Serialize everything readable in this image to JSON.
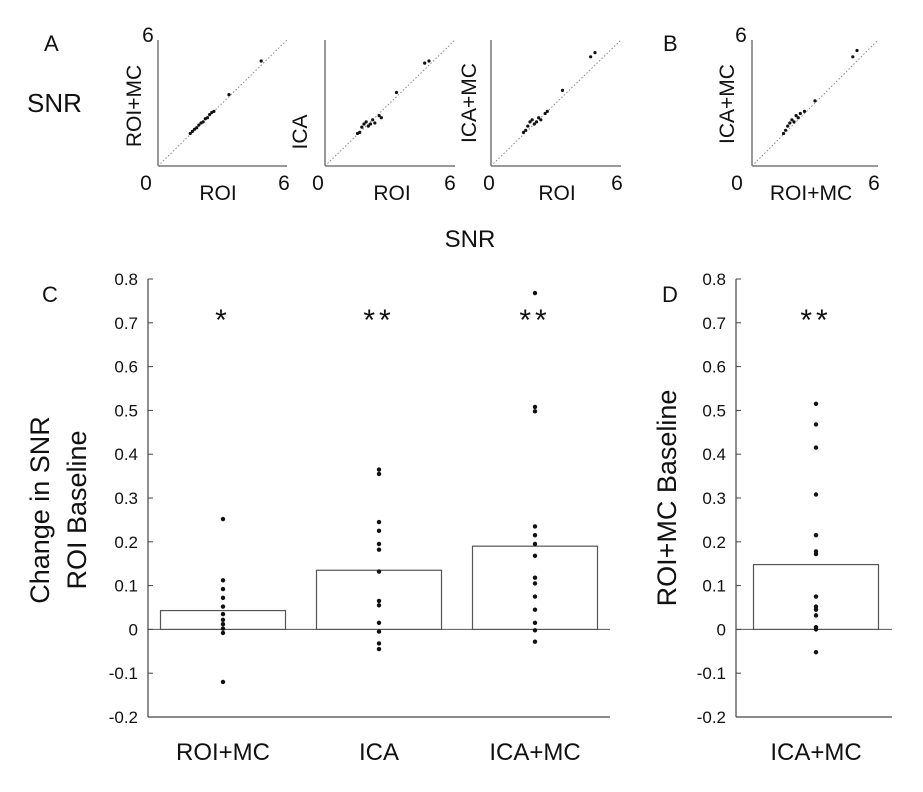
{
  "figure": {
    "snr_side_label": "SNR",
    "snr_center_label": "SNR"
  },
  "chart_data": [
    {
      "type": "scatter",
      "panel_label": "A",
      "xlabel": "ROI",
      "ylabel": "ROI+MC",
      "xlim": [
        0,
        6
      ],
      "ylim": [
        0,
        6
      ],
      "tick_min_label": "0",
      "tick_max_label": "6",
      "x": [
        1.5,
        1.6,
        1.7,
        1.8,
        1.9,
        2.0,
        2.1,
        2.2,
        2.3,
        2.4,
        2.5,
        2.6,
        3.3,
        4.8
      ],
      "y": [
        1.55,
        1.65,
        1.75,
        1.82,
        1.95,
        2.05,
        2.1,
        2.25,
        2.3,
        2.45,
        2.55,
        2.6,
        3.4,
        5.0
      ]
    },
    {
      "type": "scatter",
      "panel_label": "",
      "xlabel": "ROI",
      "ylabel": "ICA",
      "xlim": [
        0,
        6
      ],
      "ylim": [
        0,
        6
      ],
      "tick_min_label": "0",
      "tick_max_label": "6",
      "x": [
        1.5,
        1.6,
        1.7,
        1.8,
        1.9,
        2.0,
        2.1,
        2.2,
        2.3,
        2.5,
        2.6,
        3.3,
        4.6,
        4.8
      ],
      "y": [
        1.55,
        1.6,
        1.85,
        2.0,
        2.1,
        1.9,
        2.0,
        2.2,
        2.05,
        2.4,
        2.3,
        3.5,
        4.9,
        5.0
      ]
    },
    {
      "type": "scatter",
      "panel_label": "",
      "xlabel": "ROI",
      "ylabel": "ICA+MC",
      "xlim": [
        0,
        6
      ],
      "ylim": [
        0,
        6
      ],
      "tick_min_label": "0",
      "tick_max_label": "6",
      "x": [
        1.5,
        1.6,
        1.7,
        1.8,
        1.9,
        2.0,
        2.1,
        2.2,
        2.3,
        2.5,
        2.6,
        3.3,
        4.6,
        4.8
      ],
      "y": [
        1.6,
        1.7,
        1.9,
        2.1,
        2.2,
        2.0,
        2.1,
        2.3,
        2.2,
        2.5,
        2.6,
        3.6,
        5.2,
        5.4
      ]
    },
    {
      "type": "scatter",
      "panel_label": "B",
      "xlabel": "ROI+MC",
      "ylabel": "ICA+MC",
      "xlim": [
        0,
        6
      ],
      "ylim": [
        0,
        6
      ],
      "tick_min_label": "0",
      "tick_max_label": "6",
      "x": [
        1.5,
        1.6,
        1.7,
        1.8,
        1.9,
        2.0,
        2.1,
        2.2,
        2.3,
        2.5,
        3.0,
        4.8,
        5.0
      ],
      "y": [
        1.55,
        1.7,
        1.9,
        2.05,
        2.2,
        2.1,
        2.4,
        2.3,
        2.5,
        2.6,
        3.1,
        5.2,
        5.5
      ]
    },
    {
      "type": "bar",
      "panel_label": "C",
      "title": "",
      "xlabel": "",
      "ylabel": "Change in SNR",
      "ylabel2": "ROI Baseline",
      "ylim": [
        -0.2,
        0.8
      ],
      "yticks": [
        -0.2,
        -0.1,
        0,
        0.1,
        0.2,
        0.3,
        0.4,
        0.5,
        0.6,
        0.7,
        0.8
      ],
      "ytick_labels": [
        "-0.2",
        "-0.1",
        "0",
        "0.1",
        "0.2",
        "0.3",
        "0.4",
        "0.5",
        "0.6",
        "0.7",
        "0.8"
      ],
      "categories": [
        "ROI+MC",
        "ICA",
        "ICA+MC"
      ],
      "values": [
        0.043,
        0.135,
        0.19
      ],
      "significance": [
        "*",
        "**",
        "**"
      ],
      "points": [
        [
          0.252,
          0.112,
          0.092,
          0.072,
          0.052,
          0.035,
          0.022,
          0.012,
          0.002,
          -0.008,
          -0.12
        ],
        [
          0.365,
          0.355,
          0.245,
          0.225,
          0.195,
          0.182,
          0.132,
          0.065,
          0.055,
          0.015,
          -0.005,
          -0.032,
          -0.045
        ],
        [
          0.768,
          0.508,
          0.498,
          0.235,
          0.215,
          0.195,
          0.168,
          0.118,
          0.105,
          0.075,
          0.045,
          0.015,
          -0.002,
          -0.028
        ]
      ]
    },
    {
      "type": "bar",
      "panel_label": "D",
      "title": "",
      "xlabel": "",
      "ylabel": "ROI+MC Baseline",
      "ylim": [
        -0.2,
        0.8
      ],
      "yticks": [
        -0.2,
        -0.1,
        0,
        0.1,
        0.2,
        0.3,
        0.4,
        0.5,
        0.6,
        0.7,
        0.8
      ],
      "ytick_labels": [
        "-0.2",
        "-0.1",
        "0",
        "0.1",
        "0.2",
        "0.3",
        "0.4",
        "0.5",
        "0.6",
        "0.7",
        "0.8"
      ],
      "categories": [
        "ICA+MC"
      ],
      "values": [
        0.148
      ],
      "significance": [
        "**"
      ],
      "points": [
        [
          0.515,
          0.468,
          0.415,
          0.308,
          0.215,
          0.178,
          0.172,
          0.075,
          0.052,
          0.045,
          0.032,
          0.005,
          0.0,
          -0.052
        ]
      ]
    }
  ]
}
